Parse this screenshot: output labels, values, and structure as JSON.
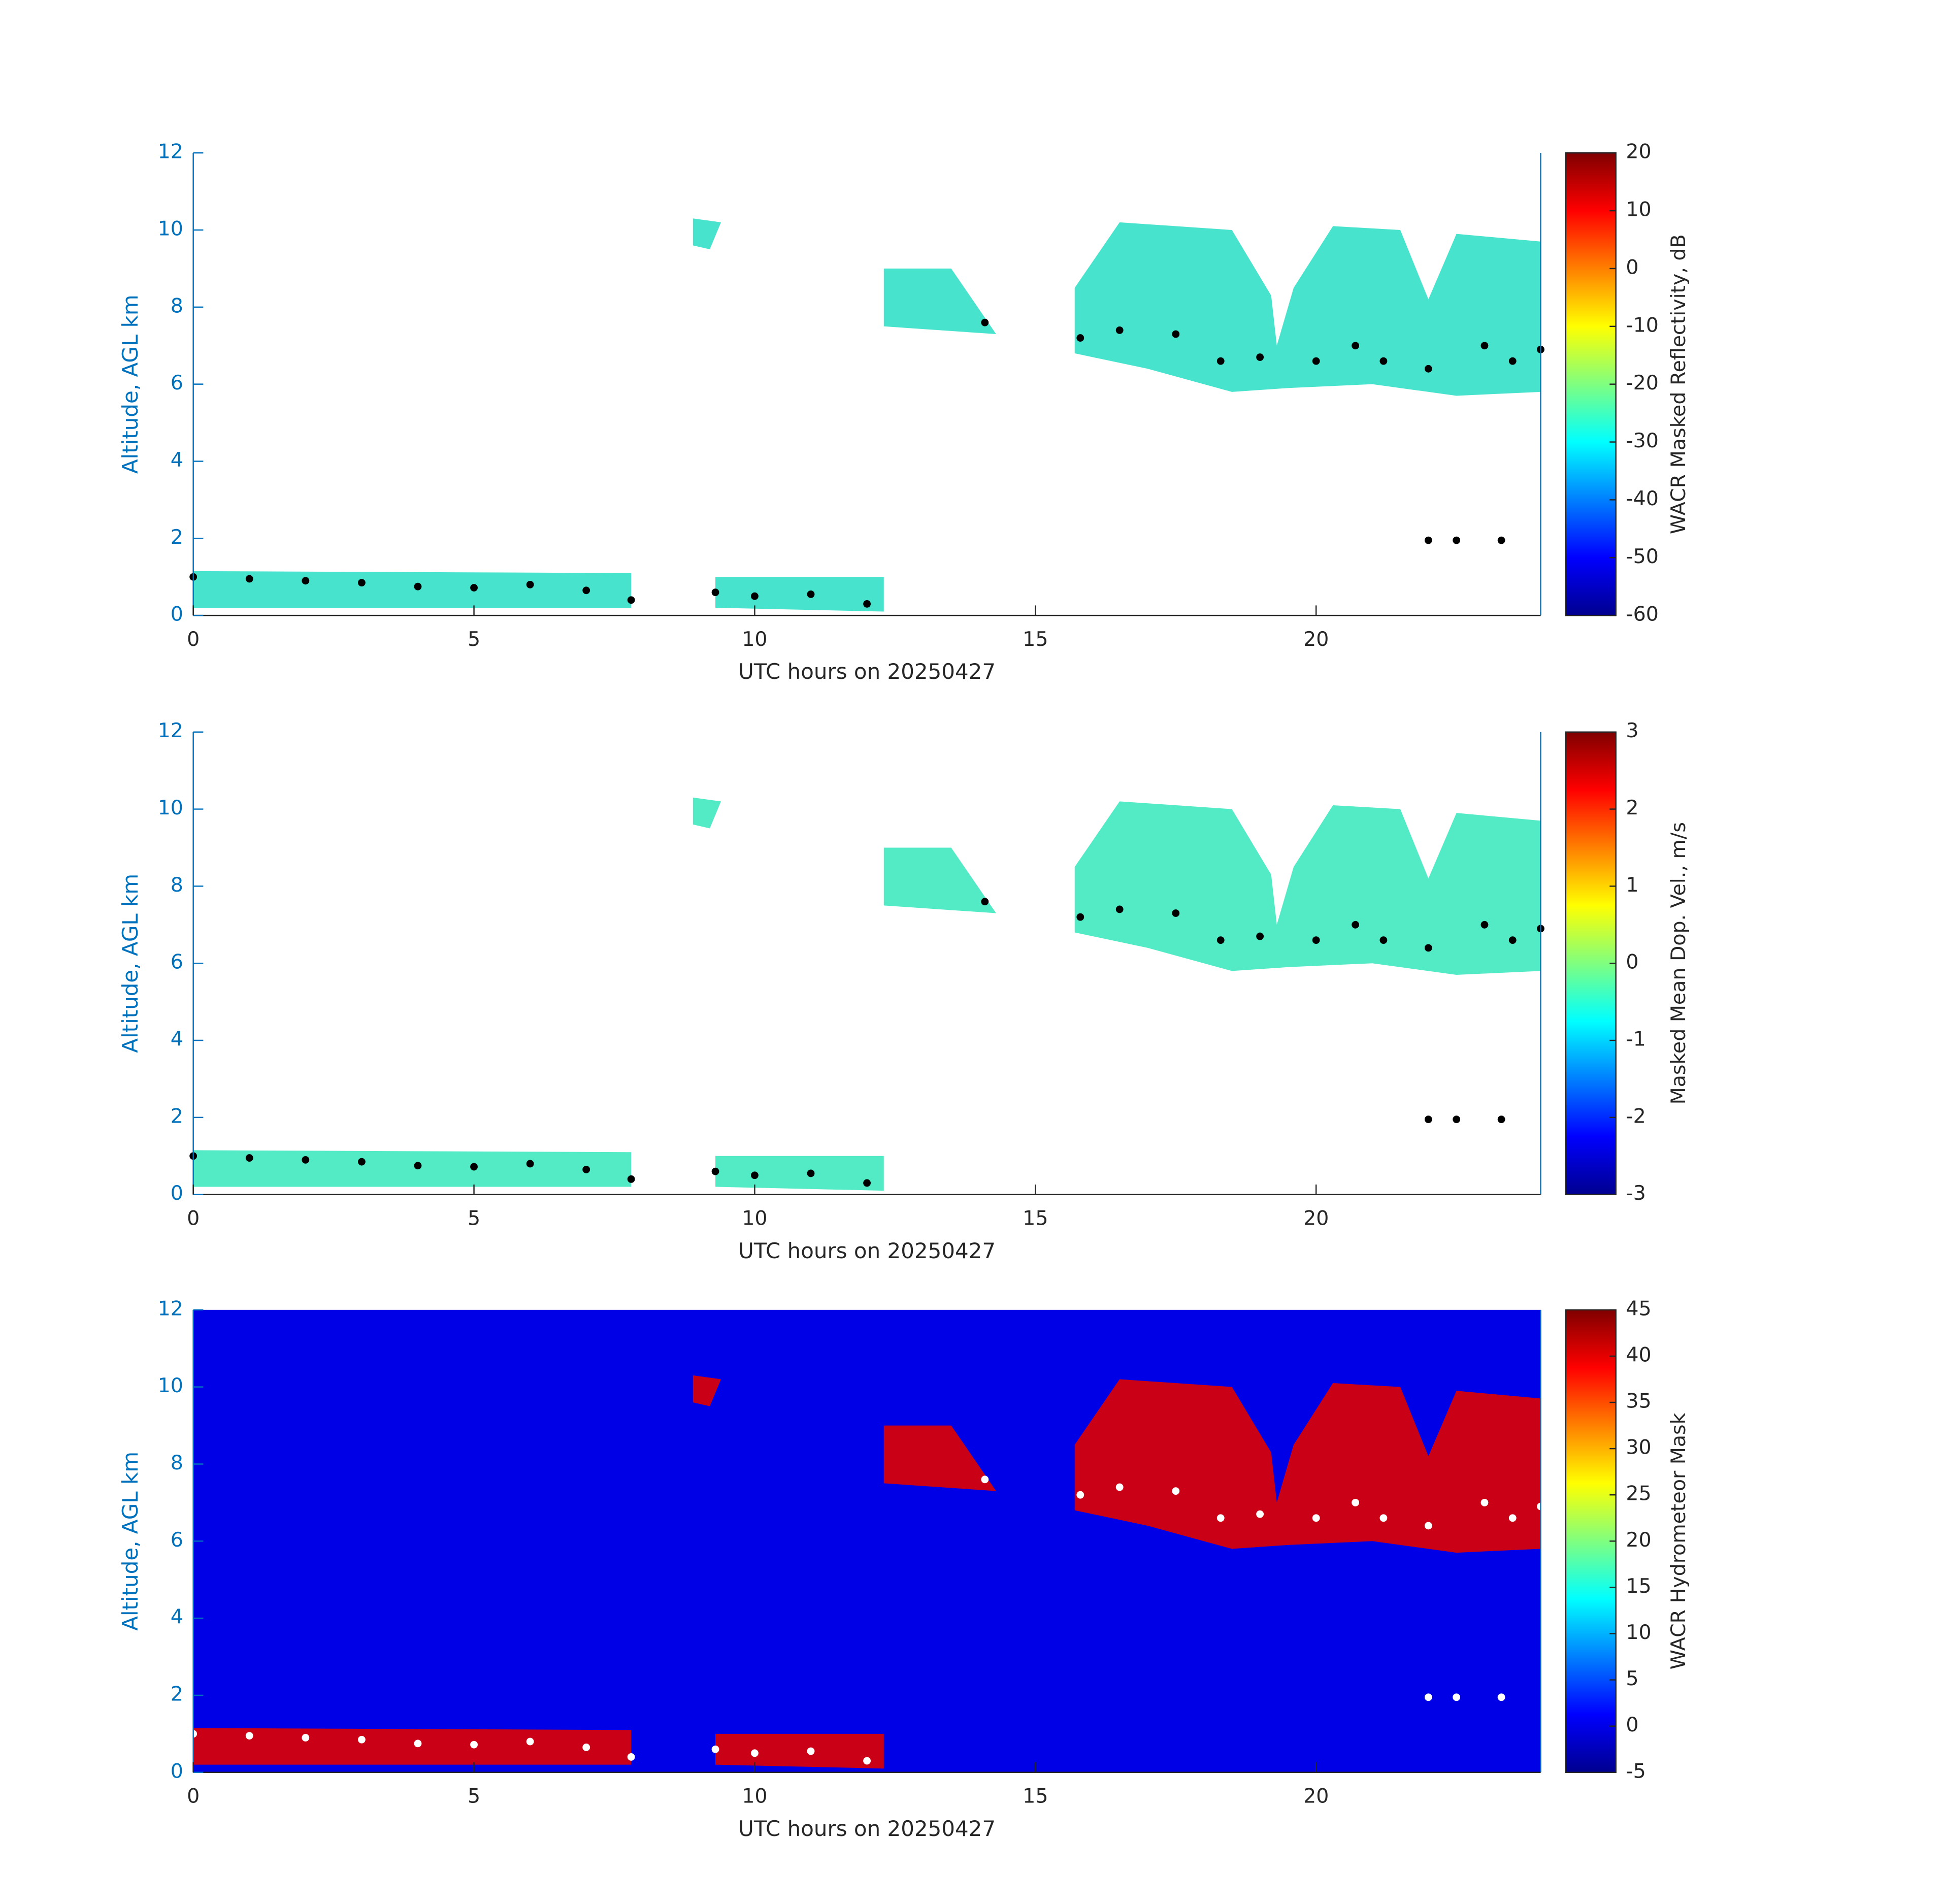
{
  "chart_data": [
    {
      "type": "heatmap",
      "xlabel": "UTC hours on 20250427",
      "ylabel": "Altitude, AGL km",
      "colorbar_label": "WACR Masked Reflectivity, dB",
      "xlim": [
        0,
        24
      ],
      "xticks": [
        0,
        5,
        10,
        15,
        20
      ],
      "ylim": [
        0,
        12
      ],
      "yticks": [
        0,
        2,
        4,
        6,
        8,
        10,
        12
      ],
      "clim": [
        -60,
        20
      ],
      "cticks": [
        -60,
        -50,
        -40,
        -30,
        -20,
        -10,
        0,
        10,
        20
      ],
      "background": "#ffffff",
      "cloud_color": "#33e0c8",
      "marker_color": "#000000"
    },
    {
      "type": "heatmap",
      "xlabel": "UTC hours on 20250427",
      "ylabel": "Altitude, AGL km",
      "colorbar_label": "Masked Mean Dop. Vel., m/s",
      "xlim": [
        0,
        24
      ],
      "xticks": [
        0,
        5,
        10,
        15,
        20
      ],
      "ylim": [
        0,
        12
      ],
      "yticks": [
        0,
        2,
        4,
        6,
        8,
        10,
        12
      ],
      "clim": [
        -3,
        3
      ],
      "cticks": [
        -3,
        -2,
        -1,
        0,
        1,
        2,
        3
      ],
      "background": "#ffffff",
      "cloud_color": "#40e8c0",
      "marker_color": "#000000"
    },
    {
      "type": "heatmap",
      "xlabel": "UTC hours on 20250427",
      "ylabel": "Altitude, AGL km",
      "colorbar_label": "WACR Hydrometeor Mask",
      "xlim": [
        0,
        24
      ],
      "xticks": [
        0,
        5,
        10,
        15,
        20
      ],
      "ylim": [
        0,
        12
      ],
      "yticks": [
        0,
        2,
        4,
        6,
        8,
        10,
        12
      ],
      "clim": [
        -5,
        45
      ],
      "cticks": [
        -5,
        0,
        5,
        10,
        15,
        20,
        25,
        30,
        35,
        40,
        45
      ],
      "background": "#0000e6",
      "cloud_color": "#e00000",
      "marker_color": "#ffffff"
    }
  ],
  "cloud_base": {
    "x": [
      0,
      1,
      2,
      3,
      4,
      5,
      6,
      7,
      7.8,
      9.3,
      10,
      11,
      12,
      14.1,
      15.8,
      16.5,
      17.5,
      18.3,
      19,
      20,
      20.7,
      21.2,
      22,
      23,
      23.5,
      24,
      22,
      22.5,
      23.3
    ],
    "y": [
      1.0,
      0.95,
      0.9,
      0.85,
      0.75,
      0.72,
      0.8,
      0.65,
      0.4,
      0.6,
      0.5,
      0.55,
      0.3,
      7.6,
      7.2,
      7.4,
      7.3,
      6.6,
      6.7,
      6.6,
      7.0,
      6.6,
      6.4,
      7.0,
      6.6,
      6.9,
      1.95,
      1.95,
      1.95
    ]
  }
}
